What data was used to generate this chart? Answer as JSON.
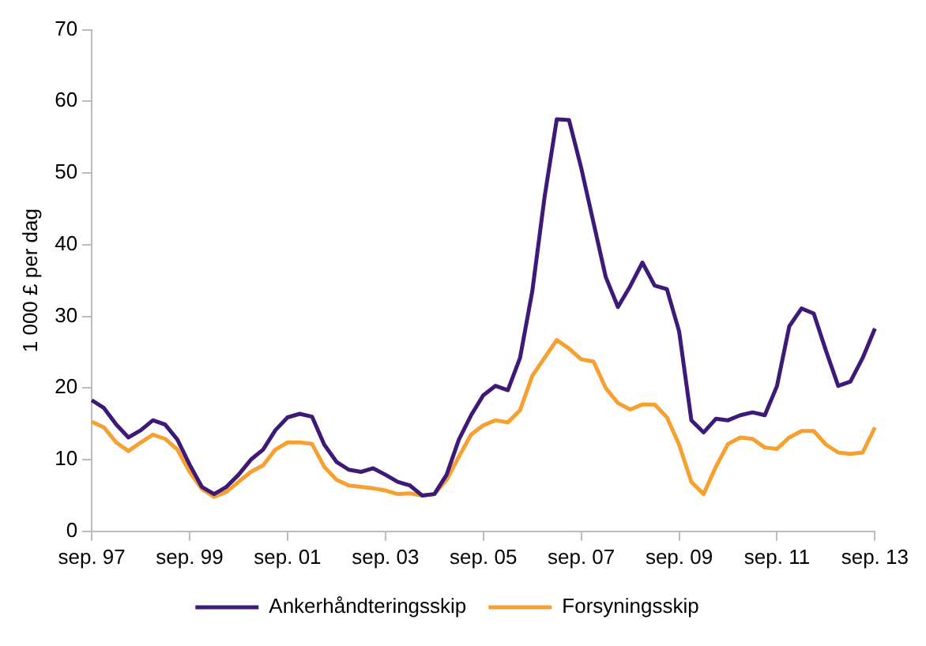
{
  "chart_data": {
    "type": "line",
    "ylabel": "1 000 £ per dag",
    "categories": [
      "sep. 97",
      null,
      null,
      null,
      null,
      null,
      null,
      null,
      "sep. 99",
      null,
      null,
      null,
      null,
      null,
      null,
      null,
      "sep. 01",
      null,
      null,
      null,
      null,
      null,
      null,
      null,
      "sep. 03",
      null,
      null,
      null,
      null,
      null,
      null,
      null,
      "sep. 05",
      null,
      null,
      null,
      null,
      null,
      null,
      null,
      "sep. 07",
      null,
      null,
      null,
      null,
      null,
      null,
      null,
      "sep. 09",
      null,
      null,
      null,
      null,
      null,
      null,
      null,
      "sep. 11",
      null,
      null,
      null,
      null,
      null,
      null,
      null,
      "sep. 13"
    ],
    "series": [
      {
        "name": "Ankerhåndteringsskip",
        "color": "#3d1a78",
        "values": [
          18.3,
          17.2,
          14.9,
          13.1,
          14.1,
          15.5,
          14.9,
          12.8,
          9.3,
          6.2,
          5.2,
          6.2,
          7.9,
          10.0,
          11.4,
          14.1,
          15.9,
          16.4,
          16.0,
          12.1,
          9.7,
          8.6,
          8.3,
          8.8,
          7.9,
          6.9,
          6.4,
          5.0,
          5.2,
          7.9,
          12.8,
          16.2,
          19.0,
          20.3,
          19.7,
          24.2,
          33.5,
          46.6,
          57.5,
          57.4,
          50.7,
          43.1,
          35.5,
          31.3,
          34.2,
          37.5,
          34.3,
          33.8,
          27.9,
          15.5,
          13.8,
          15.7,
          15.5,
          16.2,
          16.6,
          16.2,
          20.3,
          28.6,
          31.1,
          30.4,
          25.2,
          20.3,
          20.9,
          24.2,
          28.3
        ]
      },
      {
        "name": "Forsyningsskip",
        "color": "#f5a031",
        "values": [
          15.3,
          14.5,
          12.4,
          11.2,
          12.4,
          13.5,
          12.9,
          11.4,
          8.3,
          5.9,
          4.8,
          5.5,
          6.9,
          8.3,
          9.2,
          11.4,
          12.4,
          12.4,
          12.2,
          9.0,
          7.2,
          6.4,
          6.2,
          6.0,
          5.7,
          5.2,
          5.3,
          5.0,
          5.2,
          7.2,
          10.4,
          13.5,
          14.8,
          15.5,
          15.2,
          16.9,
          21.7,
          24.2,
          26.7,
          25.5,
          24.0,
          23.7,
          20.0,
          17.9,
          17.0,
          17.7,
          17.7,
          15.9,
          12.1,
          6.9,
          5.2,
          9.0,
          12.2,
          13.1,
          12.9,
          11.7,
          11.5,
          13.1,
          14.0,
          14.0,
          12.1,
          11.0,
          10.8,
          11.0,
          14.5
        ]
      }
    ],
    "ylim": [
      0,
      70
    ],
    "yticks": [
      0,
      10,
      20,
      30,
      40,
      50,
      60,
      70
    ],
    "grid": false,
    "legend": "bottom",
    "marker": "none",
    "line_style": "solid"
  }
}
